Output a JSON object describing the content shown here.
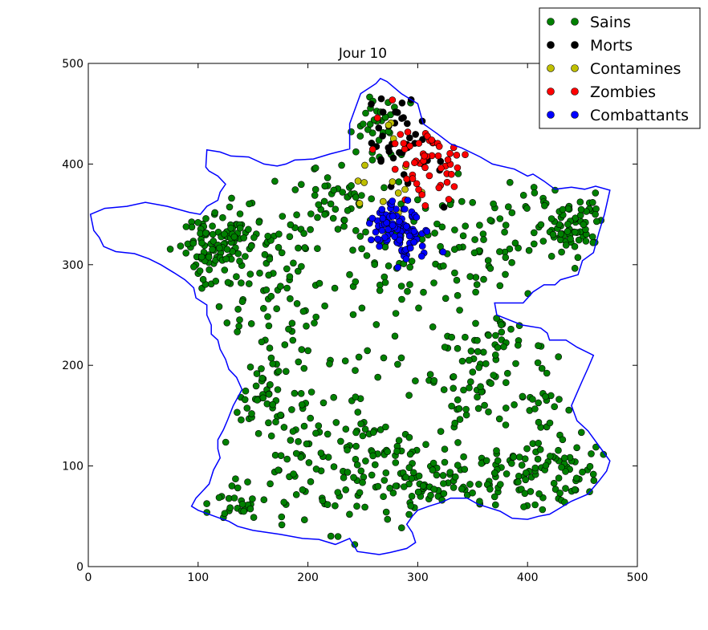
{
  "chart_data": {
    "type": "scatter",
    "title": "Jour 10",
    "xlabel": "",
    "ylabel": "",
    "xlim": [
      0,
      500
    ],
    "ylim": [
      0,
      500
    ],
    "x_ticks": [
      0,
      100,
      200,
      300,
      400,
      500
    ],
    "y_ticks": [
      0,
      100,
      200,
      300,
      400,
      500
    ],
    "x_tick_labels": [
      "0",
      "100",
      "200",
      "300",
      "400",
      "500"
    ],
    "y_tick_labels": [
      "0",
      "100",
      "200",
      "300",
      "400",
      "500"
    ],
    "grid": false,
    "legend_position": "top-right",
    "outline": {
      "color": "#0000ff",
      "points": [
        [
          265,
          12
        ],
        [
          245,
          15
        ],
        [
          238,
          28
        ],
        [
          225,
          22
        ],
        [
          210,
          27
        ],
        [
          195,
          28
        ],
        [
          175,
          32
        ],
        [
          150,
          36
        ],
        [
          136,
          40
        ],
        [
          128,
          45
        ],
        [
          120,
          48
        ],
        [
          110,
          52
        ],
        [
          100,
          56
        ],
        [
          94,
          60
        ],
        [
          98,
          68
        ],
        [
          110,
          82
        ],
        [
          114,
          96
        ],
        [
          120,
          108
        ],
        [
          118,
          117
        ],
        [
          118,
          126
        ],
        [
          123,
          136
        ],
        [
          127,
          146
        ],
        [
          132,
          160
        ],
        [
          140,
          176
        ],
        [
          135,
          188
        ],
        [
          128,
          196
        ],
        [
          125,
          206
        ],
        [
          120,
          216
        ],
        [
          118,
          225
        ],
        [
          112,
          231
        ],
        [
          112,
          240
        ],
        [
          108,
          250
        ],
        [
          108,
          260
        ],
        [
          98,
          267
        ],
        [
          96,
          277
        ],
        [
          88,
          285
        ],
        [
          78,
          292
        ],
        [
          66,
          300
        ],
        [
          55,
          306
        ],
        [
          42,
          311
        ],
        [
          25,
          313
        ],
        [
          14,
          318
        ],
        [
          10,
          327
        ],
        [
          5,
          334
        ],
        [
          2,
          350
        ],
        [
          15,
          356
        ],
        [
          35,
          358
        ],
        [
          52,
          362
        ],
        [
          72,
          358
        ],
        [
          92,
          352
        ],
        [
          102,
          350
        ],
        [
          108,
          358
        ],
        [
          118,
          364
        ],
        [
          120,
          372
        ],
        [
          125,
          380
        ],
        [
          118,
          388
        ],
        [
          110,
          393
        ],
        [
          107,
          397
        ],
        [
          108,
          414
        ],
        [
          120,
          412
        ],
        [
          130,
          408
        ],
        [
          146,
          407
        ],
        [
          160,
          400
        ],
        [
          172,
          398
        ],
        [
          180,
          400
        ],
        [
          188,
          404
        ],
        [
          205,
          405
        ],
        [
          220,
          410
        ],
        [
          238,
          415
        ],
        [
          238,
          440
        ],
        [
          248,
          470
        ],
        [
          262,
          480
        ],
        [
          266,
          485
        ],
        [
          272,
          482
        ],
        [
          285,
          470
        ],
        [
          300,
          460
        ],
        [
          305,
          440
        ],
        [
          318,
          430
        ],
        [
          330,
          420
        ],
        [
          340,
          416
        ],
        [
          357,
          407
        ],
        [
          368,
          400
        ],
        [
          388,
          395
        ],
        [
          400,
          388
        ],
        [
          405,
          390
        ],
        [
          415,
          383
        ],
        [
          425,
          375
        ],
        [
          440,
          377
        ],
        [
          452,
          375
        ],
        [
          462,
          378
        ],
        [
          475,
          374
        ],
        [
          470,
          350
        ],
        [
          465,
          332
        ],
        [
          460,
          312
        ],
        [
          450,
          304
        ],
        [
          446,
          290
        ],
        [
          430,
          285
        ],
        [
          425,
          280
        ],
        [
          415,
          280
        ],
        [
          405,
          273
        ],
        [
          396,
          262
        ],
        [
          380,
          262
        ],
        [
          370,
          262
        ],
        [
          372,
          250
        ],
        [
          395,
          240
        ],
        [
          412,
          237
        ],
        [
          418,
          232
        ],
        [
          420,
          225
        ],
        [
          435,
          225
        ],
        [
          445,
          218
        ],
        [
          460,
          210
        ],
        [
          455,
          197
        ],
        [
          450,
          185
        ],
        [
          446,
          175
        ],
        [
          440,
          160
        ],
        [
          445,
          145
        ],
        [
          455,
          135
        ],
        [
          465,
          120
        ],
        [
          475,
          105
        ],
        [
          472,
          95
        ],
        [
          465,
          85
        ],
        [
          455,
          72
        ],
        [
          440,
          65
        ],
        [
          420,
          52
        ],
        [
          410,
          50
        ],
        [
          400,
          47
        ],
        [
          386,
          48
        ],
        [
          375,
          55
        ],
        [
          355,
          62
        ],
        [
          345,
          68
        ],
        [
          330,
          68
        ],
        [
          322,
          64
        ],
        [
          310,
          60
        ],
        [
          300,
          56
        ],
        [
          295,
          50
        ],
        [
          290,
          42
        ],
        [
          295,
          34
        ],
        [
          298,
          24
        ],
        [
          290,
          18
        ],
        [
          275,
          14
        ],
        [
          265,
          12
        ]
      ]
    },
    "series": [
      {
        "name": "Sains",
        "color": "#008000"
      },
      {
        "name": "Morts",
        "color": "#000000"
      },
      {
        "name": "Contamines",
        "color": "#bfbf00"
      },
      {
        "name": "Zombies",
        "color": "#ff0000"
      },
      {
        "name": "Combattants",
        "color": "#0000ff"
      }
    ],
    "clusters": [
      {
        "series": "Sains",
        "cx": 120,
        "cy": 320,
        "sx": 18,
        "sy": 18,
        "n": 110,
        "seed": 11
      },
      {
        "series": "Sains",
        "cx": 170,
        "cy": 280,
        "sx": 28,
        "sy": 45,
        "n": 80,
        "seed": 12
      },
      {
        "series": "Sains",
        "cx": 160,
        "cy": 170,
        "sx": 25,
        "sy": 35,
        "n": 60,
        "seed": 13
      },
      {
        "series": "Sains",
        "cx": 230,
        "cy": 100,
        "sx": 40,
        "sy": 35,
        "n": 90,
        "seed": 14
      },
      {
        "series": "Sains",
        "cx": 320,
        "cy": 80,
        "sx": 45,
        "sy": 20,
        "n": 110,
        "seed": 15
      },
      {
        "series": "Sains",
        "cx": 420,
        "cy": 90,
        "sx": 30,
        "sy": 20,
        "n": 80,
        "seed": 16
      },
      {
        "series": "Sains",
        "cx": 360,
        "cy": 200,
        "sx": 20,
        "sy": 35,
        "n": 70,
        "seed": 17
      },
      {
        "series": "Sains",
        "cx": 440,
        "cy": 340,
        "sx": 15,
        "sy": 20,
        "n": 70,
        "seed": 18
      },
      {
        "series": "Sains",
        "cx": 380,
        "cy": 330,
        "sx": 30,
        "sy": 30,
        "n": 60,
        "seed": 19
      },
      {
        "series": "Sains",
        "cx": 230,
        "cy": 370,
        "sx": 25,
        "sy": 40,
        "n": 60,
        "seed": 20
      },
      {
        "series": "Sains",
        "cx": 290,
        "cy": 310,
        "sx": 25,
        "sy": 30,
        "n": 60,
        "seed": 21
      },
      {
        "series": "Sains",
        "cx": 260,
        "cy": 450,
        "sx": 15,
        "sy": 10,
        "n": 25,
        "seed": 22
      },
      {
        "series": "Sains",
        "cx": 280,
        "cy": 200,
        "sx": 35,
        "sy": 40,
        "n": 40,
        "seed": 23
      },
      {
        "series": "Sains",
        "cx": 120,
        "cy": 60,
        "sx": 20,
        "sy": 10,
        "n": 25,
        "seed": 24
      },
      {
        "series": "Sains",
        "cx": 420,
        "cy": 180,
        "sx": 20,
        "sy": 40,
        "n": 30,
        "seed": 25
      },
      {
        "series": "Combattants",
        "cx": 278,
        "cy": 337,
        "sx": 12,
        "sy": 12,
        "n": 95,
        "seed": 31
      },
      {
        "series": "Combattants",
        "cx": 300,
        "cy": 318,
        "sx": 12,
        "sy": 10,
        "n": 12,
        "seed": 32
      },
      {
        "series": "Zombies",
        "cx": 310,
        "cy": 410,
        "sx": 20,
        "sy": 25,
        "n": 55,
        "seed": 41
      },
      {
        "series": "Morts",
        "cx": 290,
        "cy": 420,
        "sx": 22,
        "sy": 28,
        "n": 40,
        "seed": 51
      },
      {
        "series": "Contamines",
        "cx": 270,
        "cy": 385,
        "sx": 20,
        "sy": 22,
        "n": 14,
        "seed": 61
      }
    ]
  }
}
